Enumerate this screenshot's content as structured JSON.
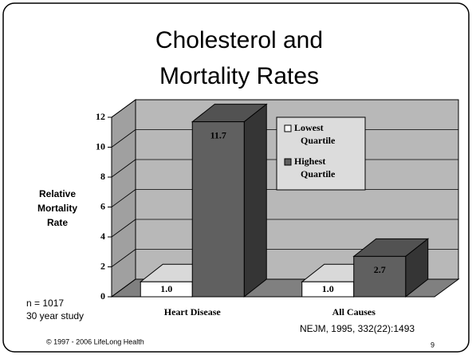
{
  "chart_data": {
    "type": "bar3d",
    "title": [
      "Cholesterol and",
      "Mortality Rates"
    ],
    "y_label": [
      "Relative",
      "Mortality",
      "Rate"
    ],
    "categories": [
      "Heart Disease",
      "All Causes"
    ],
    "series": [
      {
        "name": "Lowest Quartile",
        "color": "#ffffff",
        "values": [
          1.0,
          1.0
        ],
        "value_labels": [
          "1.0",
          "1.0"
        ]
      },
      {
        "name": "Highest Quartile",
        "color": "#606060",
        "values": [
          11.7,
          2.7
        ],
        "value_labels": [
          "11.7",
          "2.7"
        ]
      }
    ],
    "ylim": [
      0,
      12
    ],
    "yticks": [
      0,
      2,
      4,
      6,
      8,
      10,
      12
    ],
    "grid": true,
    "annotations": [
      "n = 1017",
      "30 year study",
      "NEJM, 1995, 332(22):1493"
    ],
    "footer": "© 1997 - 2006 LifeLong Health",
    "page_number": "9"
  }
}
